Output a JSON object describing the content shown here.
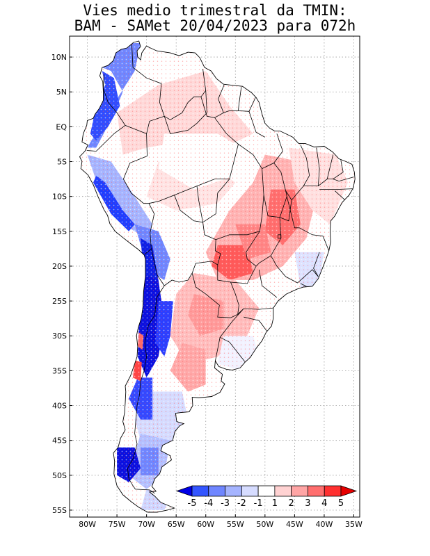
{
  "title": {
    "line1": "Vies medio trimestral da TMIN:",
    "line2": "BAM - SAMet 20/04/2023  para 072h"
  },
  "map": {
    "lon_range": [
      -83,
      -34
    ],
    "lat_range": [
      -56,
      13
    ],
    "x_ticks": [
      {
        "lon": -80,
        "label": "80W"
      },
      {
        "lon": -75,
        "label": "75W"
      },
      {
        "lon": -70,
        "label": "70W"
      },
      {
        "lon": -65,
        "label": "65W"
      },
      {
        "lon": -60,
        "label": "60W"
      },
      {
        "lon": -55,
        "label": "55W"
      },
      {
        "lon": -50,
        "label": "50W"
      },
      {
        "lon": -45,
        "label": "45W"
      },
      {
        "lon": -40,
        "label": "40W"
      },
      {
        "lon": -35,
        "label": "35W"
      }
    ],
    "y_ticks": [
      {
        "lat": 10,
        "label": "10N"
      },
      {
        "lat": 5,
        "label": "5N"
      },
      {
        "lat": 0,
        "label": "EQ"
      },
      {
        "lat": -5,
        "label": "5S"
      },
      {
        "lat": -10,
        "label": "10S"
      },
      {
        "lat": -15,
        "label": "15S"
      },
      {
        "lat": -20,
        "label": "20S"
      },
      {
        "lat": -25,
        "label": "25S"
      },
      {
        "lat": -30,
        "label": "30S"
      },
      {
        "lat": -35,
        "label": "35S"
      },
      {
        "lat": -40,
        "label": "40S"
      },
      {
        "lat": -45,
        "label": "45S"
      },
      {
        "lat": -50,
        "label": "50S"
      },
      {
        "lat": -55,
        "label": "55S"
      }
    ],
    "grid": "dotted"
  },
  "colorbar": {
    "labels": [
      "-5",
      "-4",
      "-3",
      "-2",
      "-1",
      "1",
      "2",
      "3",
      "4",
      "5"
    ],
    "colors": [
      "#0000e6",
      "#3355ff",
      "#6f86ff",
      "#a5b4ff",
      "#d6dcff",
      "#ffffff",
      "#ffd2d2",
      "#ffa5a5",
      "#ff6e6e",
      "#ff3030",
      "#e60000"
    ]
  }
}
